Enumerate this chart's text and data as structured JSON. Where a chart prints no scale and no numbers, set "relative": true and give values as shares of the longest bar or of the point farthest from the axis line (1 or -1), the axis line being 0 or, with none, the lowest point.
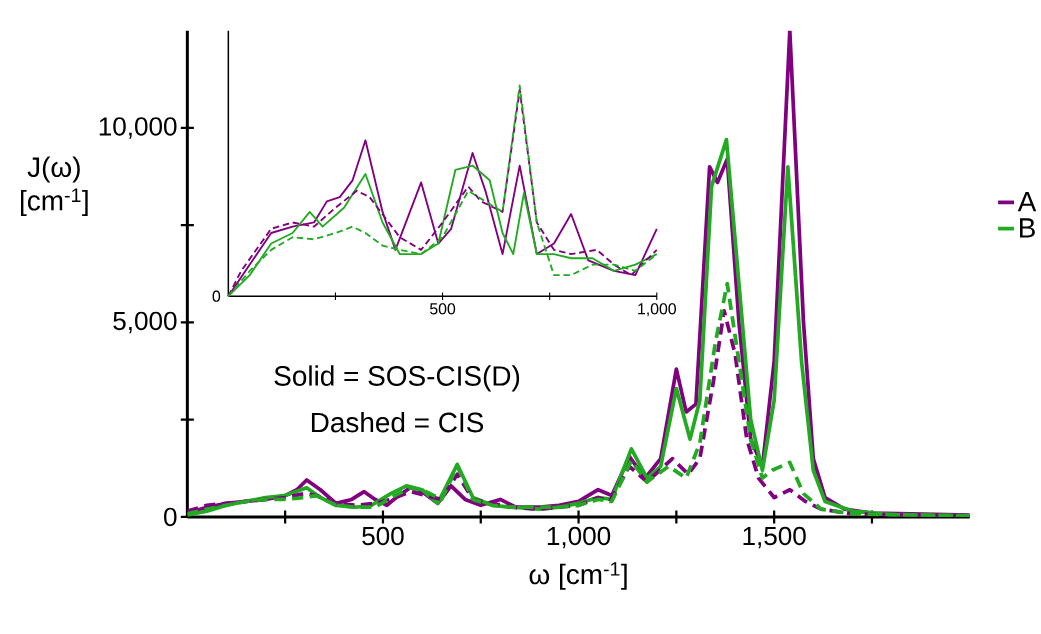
{
  "chart_data": [
    {
      "type": "line",
      "xlabel": "ω [cm$^{-1}$]",
      "ylabel": "J(ω) [cm$^{-1}$]",
      "xlim": [
        0,
        2000
      ],
      "ylim": [
        0,
        12500
      ],
      "xticks": [
        {
          "value": 250,
          "label": null
        },
        500,
        {
          "value": 750,
          "label": null
        },
        {
          "value": 1000,
          "label": "1,000"
        },
        {
          "value": 1250,
          "label": null
        },
        {
          "value": 1500,
          "label": "1,500"
        },
        {
          "value": 1750,
          "label": null
        }
      ],
      "yticks": [
        0,
        {
          "value": 2500,
          "label": null
        },
        {
          "value": 5000,
          "label": "5,000"
        },
        {
          "value": 7500,
          "label": null
        },
        {
          "value": 10000,
          "label": "10,000"
        }
      ],
      "legend": "right",
      "annotations": [
        "Solid = SOS-CIS(D)",
        "Dashed = CIS"
      ],
      "series": [
        {
          "name": "A",
          "color": "#800080",
          "line_style": "solid",
          "x": [
            0,
            50,
            100,
            150,
            200,
            250,
            280,
            305,
            340,
            380,
            420,
            452,
            480,
            510,
            540,
            570,
            600,
            640,
            674,
            710,
            750,
            800,
            840,
            900,
            950,
            1000,
            1050,
            1085,
            1130,
            1170,
            1210,
            1250,
            1275,
            1300,
            1335,
            1355,
            1380,
            1410,
            1440,
            1470,
            1500,
            1540,
            1575,
            1600,
            1630,
            1680,
            1750,
            1850,
            2000
          ],
          "values": [
            100,
            250,
            350,
            400,
            450,
            550,
            700,
            950,
            700,
            350,
            450,
            650,
            450,
            300,
            550,
            750,
            650,
            350,
            800,
            450,
            300,
            450,
            250,
            250,
            300,
            400,
            700,
            550,
            1550,
            1000,
            1500,
            3800,
            2700,
            2900,
            9000,
            8600,
            9200,
            5000,
            2000,
            1300,
            4000,
            12500,
            5000,
            1500,
            500,
            200,
            100,
            80,
            50
          ]
        },
        {
          "name": "B",
          "color": "#22aa22",
          "line_style": "solid",
          "x": [
            0,
            50,
            100,
            150,
            200,
            250,
            305,
            340,
            380,
            430,
            470,
            520,
            560,
            600,
            640,
            690,
            730,
            780,
            830,
            900,
            950,
            1000,
            1050,
            1085,
            1135,
            1175,
            1210,
            1250,
            1285,
            1310,
            1340,
            1378,
            1410,
            1440,
            1470,
            1500,
            1535,
            1570,
            1600,
            1630,
            1700,
            1800,
            2000
          ],
          "values": [
            50,
            150,
            300,
            400,
            500,
            550,
            750,
            500,
            300,
            250,
            300,
            600,
            800,
            700,
            350,
            1350,
            500,
            300,
            250,
            200,
            250,
            350,
            500,
            450,
            1750,
            1000,
            1300,
            3300,
            2000,
            3000,
            8500,
            9700,
            6000,
            2500,
            1200,
            3000,
            9000,
            4000,
            1200,
            400,
            150,
            60,
            30
          ]
        },
        {
          "color": "#800080",
          "line_style": "dashed",
          "x": [
            0,
            50,
            100,
            150,
            200,
            250,
            300,
            330,
            380,
            430,
            480,
            520,
            570,
            610,
            650,
            690,
            730,
            780,
            830,
            900,
            950,
            1000,
            1050,
            1080,
            1130,
            1175,
            1240,
            1280,
            1310,
            1345,
            1372,
            1400,
            1430,
            1460,
            1500,
            1540,
            1580,
            1620,
            1700,
            2000
          ],
          "values": [
            150,
            300,
            350,
            400,
            450,
            500,
            600,
            550,
            350,
            300,
            350,
            450,
            650,
            550,
            450,
            1100,
            450,
            350,
            250,
            200,
            250,
            300,
            500,
            400,
            1300,
            900,
            1500,
            1100,
            1500,
            3500,
            5300,
            4200,
            2000,
            1000,
            500,
            700,
            400,
            200,
            80,
            30
          ]
        },
        {
          "color": "#22aa22",
          "line_style": "dashed",
          "x": [
            0,
            50,
            100,
            150,
            200,
            250,
            300,
            330,
            380,
            430,
            480,
            530,
            570,
            610,
            650,
            690,
            730,
            780,
            830,
            900,
            950,
            1000,
            1050,
            1085,
            1135,
            1175,
            1230,
            1275,
            1310,
            1350,
            1380,
            1410,
            1440,
            1470,
            1495,
            1540,
            1575,
            1620,
            1700,
            2000
          ],
          "values": [
            80,
            200,
            300,
            400,
            450,
            450,
            500,
            550,
            300,
            250,
            250,
            550,
            750,
            650,
            450,
            1300,
            450,
            300,
            250,
            250,
            250,
            300,
            450,
            400,
            1450,
            900,
            1300,
            1000,
            1900,
            4500,
            6000,
            4000,
            2000,
            1000,
            1200,
            1400,
            600,
            200,
            80,
            30
          ]
        }
      ]
    },
    {
      "type": "line",
      "relative": true,
      "xlim": [
        0,
        1000
      ],
      "xticks": [
        {
          "value": 250,
          "label": null
        },
        500,
        {
          "value": 750,
          "label": null
        },
        {
          "value": 1000,
          "label": "1,000"
        }
      ],
      "annotations": [
        "0"
      ],
      "series": [
        {
          "color": "#800080",
          "line_style": "solid",
          "x": [
            0,
            50,
            100,
            150,
            200,
            230,
            260,
            290,
            320,
            360,
            390,
            450,
            490,
            520,
            570,
            600,
            640,
            680,
            720,
            760,
            800,
            840,
            900,
            950,
            1000
          ],
          "values": [
            0,
            0.15,
            0.3,
            0.33,
            0.35,
            0.45,
            0.47,
            0.55,
            0.74,
            0.4,
            0.22,
            0.54,
            0.25,
            0.32,
            0.68,
            0.5,
            0.2,
            0.62,
            0.2,
            0.25,
            0.39,
            0.17,
            0.12,
            0.1,
            0.32
          ]
        },
        {
          "color": "#22aa22",
          "line_style": "solid",
          "x": [
            0,
            50,
            100,
            150,
            190,
            220,
            270,
            320,
            360,
            400,
            450,
            490,
            530,
            570,
            610,
            640,
            665,
            690,
            720,
            760,
            800,
            850,
            900,
            950,
            1000
          ],
          "values": [
            0,
            0.1,
            0.25,
            0.3,
            0.4,
            0.33,
            0.42,
            0.58,
            0.35,
            0.2,
            0.2,
            0.25,
            0.6,
            0.62,
            0.55,
            0.3,
            0.2,
            0.49,
            0.2,
            0.2,
            0.18,
            0.18,
            0.12,
            0.15,
            0.2
          ]
        },
        {
          "color": "#800080",
          "line_style": "dashed",
          "x": [
            0,
            30,
            100,
            150,
            200,
            250,
            300,
            330,
            400,
            450,
            500,
            560,
            590,
            640,
            680,
            720,
            760,
            800,
            860,
            900,
            940,
            1000
          ],
          "values": [
            0,
            0.12,
            0.32,
            0.35,
            0.33,
            0.42,
            0.5,
            0.47,
            0.28,
            0.22,
            0.35,
            0.52,
            0.45,
            0.4,
            0.98,
            0.35,
            0.22,
            0.2,
            0.22,
            0.15,
            0.1,
            0.22
          ]
        },
        {
          "color": "#22aa22",
          "line_style": "dashed",
          "x": [
            0,
            50,
            100,
            150,
            200,
            250,
            290,
            320,
            360,
            400,
            450,
            500,
            560,
            600,
            640,
            680,
            720,
            760,
            800,
            850,
            900,
            950,
            1000
          ],
          "values": [
            0,
            0.12,
            0.22,
            0.28,
            0.27,
            0.3,
            0.33,
            0.3,
            0.24,
            0.22,
            0.2,
            0.28,
            0.5,
            0.45,
            0.4,
            1.0,
            0.35,
            0.1,
            0.1,
            0.15,
            0.15,
            0.12,
            0.2
          ]
        }
      ]
    }
  ]
}
